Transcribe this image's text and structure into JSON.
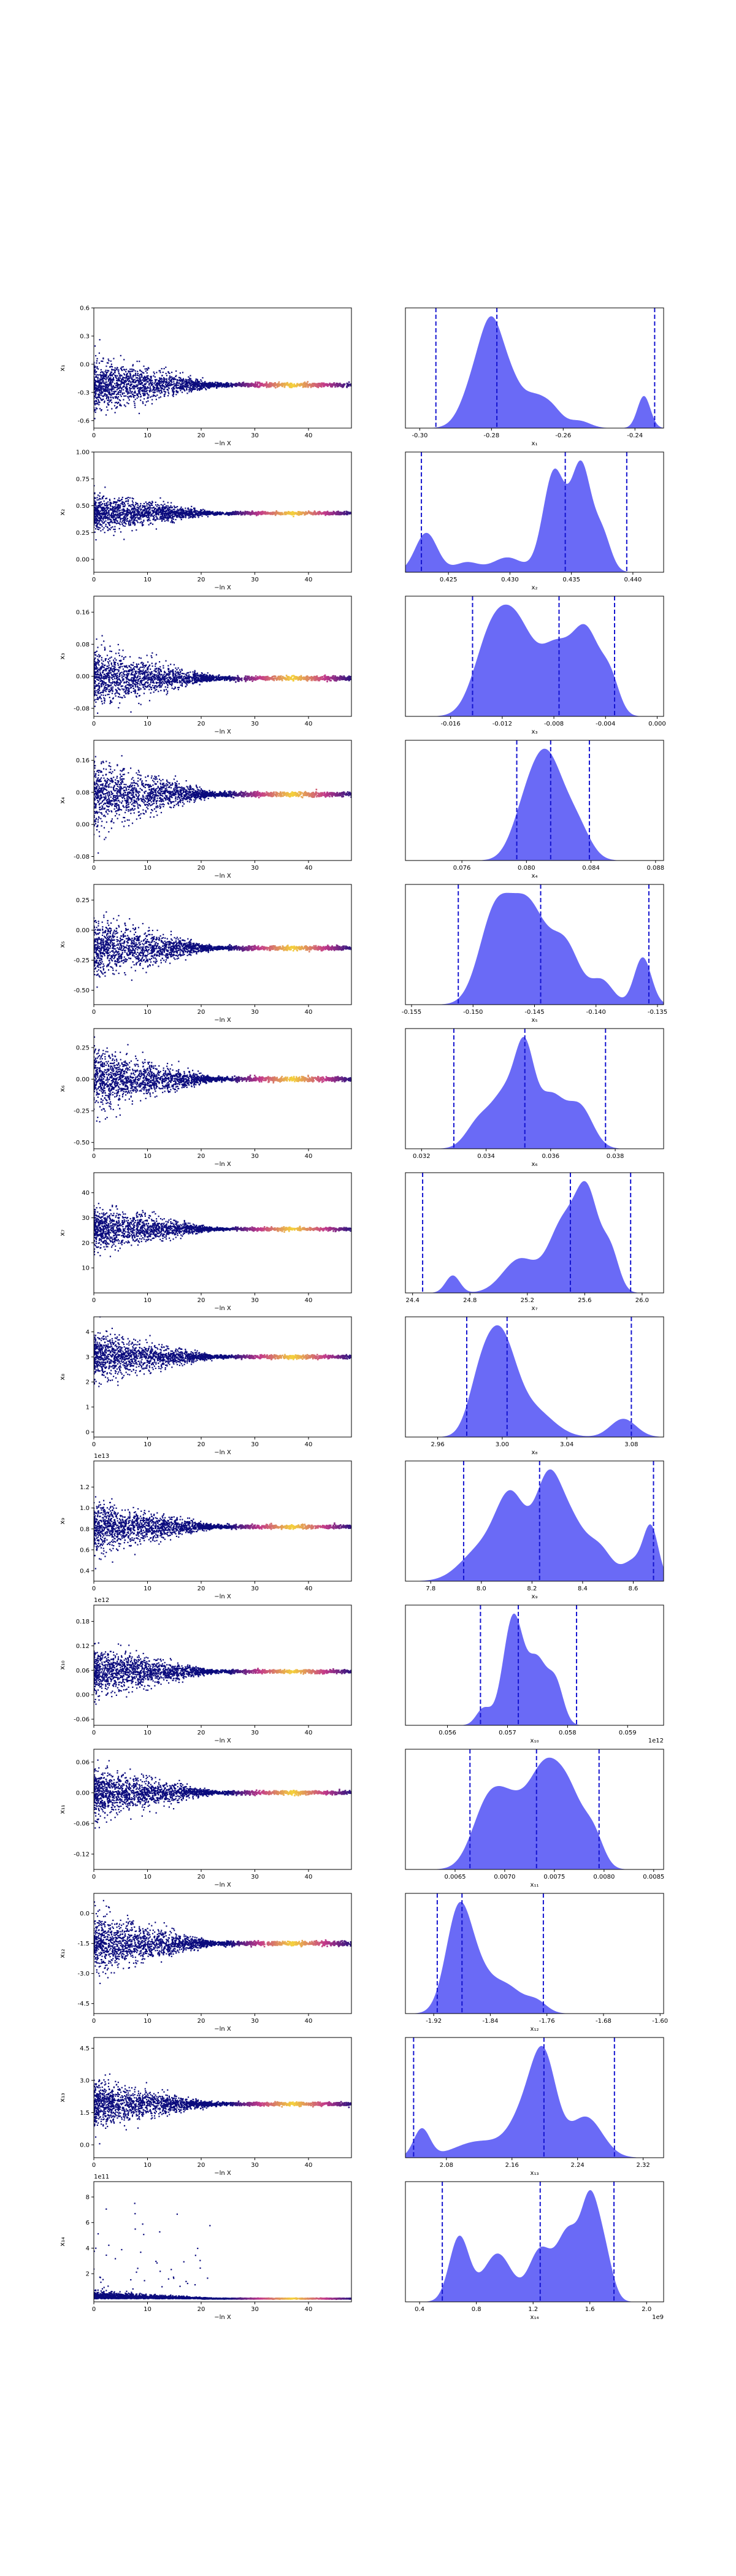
{
  "chart_data": {
    "type": "scatter",
    "colors": {
      "scatter_low": "#0b0b7d",
      "scatter_mid": "#c33a8a",
      "scatter_high": "#f5d23a",
      "kde_fill": "#5a5af5",
      "kde_alpha": 0.9,
      "quantile_line": "#1515d0"
    },
    "shared": {
      "scatter_xlabel": "−ln X",
      "scatter_xticks": [
        "0",
        "10",
        "20",
        "30",
        "40"
      ],
      "scatter_xlim": [
        0,
        48
      ]
    },
    "params": [
      {
        "ylabel": "x₁",
        "xlabel": "x₁",
        "offset": "",
        "scatter_ylim": [
          -0.68,
          0.6
        ],
        "scatter_yticks": [
          "-0.6",
          "-0.3",
          "0.0",
          "0.3",
          "0.6"
        ],
        "scatter_converged": -0.22,
        "scatter_spread": 0.25,
        "kde_xlim": [
          -0.304,
          -0.232
        ],
        "kde_xticks": [
          "-0.30",
          "-0.28",
          "-0.26",
          "-0.24"
        ],
        "kde_quantiles": [
          -0.2955,
          -0.2785,
          -0.2345
        ],
        "kde_peaks": [
          [
            -0.2835,
            0.8,
            0.004
          ],
          [
            -0.2795,
            0.93,
            0.003
          ],
          [
            -0.2745,
            0.55,
            0.003
          ],
          [
            -0.2685,
            0.35,
            0.003
          ],
          [
            -0.2635,
            0.28,
            0.003
          ],
          [
            -0.2555,
            0.1,
            0.003
          ],
          [
            -0.2375,
            0.45,
            0.0018
          ]
        ]
      },
      {
        "ylabel": "x₂",
        "xlabel": "x₂",
        "offset": "",
        "scatter_ylim": [
          -0.12,
          1.0
        ],
        "scatter_yticks": [
          "0.00",
          "0.25",
          "0.50",
          "0.75",
          "1.00"
        ],
        "scatter_converged": 0.43,
        "scatter_spread": 0.15,
        "kde_xlim": [
          0.4215,
          0.4425
        ],
        "kde_xticks": [
          "0.425",
          "0.430",
          "0.435",
          "0.440"
        ],
        "kde_quantiles": [
          0.4228,
          0.4345,
          0.4395
        ],
        "kde_peaks": [
          [
            0.4232,
            0.32,
            0.0009
          ],
          [
            0.4265,
            0.08,
            0.001
          ],
          [
            0.4298,
            0.12,
            0.0012
          ],
          [
            0.4336,
            0.82,
            0.0009
          ],
          [
            0.4358,
            0.85,
            0.0008
          ],
          [
            0.4375,
            0.3,
            0.0007
          ]
        ]
      },
      {
        "ylabel": "x₃",
        "xlabel": "x₃",
        "offset": "",
        "scatter_ylim": [
          -0.1,
          0.2
        ],
        "scatter_yticks": [
          "-0.08",
          "0.00",
          "0.08",
          "0.16"
        ],
        "scatter_converged": -0.005,
        "scatter_spread": 0.06,
        "kde_xlim": [
          -0.0195,
          0.0005
        ],
        "kde_xticks": [
          "-0.016",
          "-0.012",
          "-0.008",
          "-0.004",
          "0.000"
        ],
        "kde_quantiles": [
          -0.0143,
          -0.0076,
          -0.0033
        ],
        "kde_peaks": [
          [
            -0.0132,
            0.45,
            0.0012
          ],
          [
            -0.0111,
            0.95,
            0.0016
          ],
          [
            -0.0078,
            0.55,
            0.0011
          ],
          [
            -0.0055,
            0.82,
            0.0011
          ],
          [
            -0.0036,
            0.3,
            0.0007
          ]
        ]
      },
      {
        "ylabel": "x₄",
        "xlabel": "x₄",
        "offset": "",
        "scatter_ylim": [
          -0.09,
          0.21
        ],
        "scatter_yticks": [
          "-0.08",
          "0.00",
          "0.08",
          "0.16"
        ],
        "scatter_converged": 0.075,
        "scatter_spread": 0.07,
        "kde_xlim": [
          0.0725,
          0.0885
        ],
        "kde_xticks": [
          "0.076",
          "0.080",
          "0.084",
          "0.088"
        ],
        "kde_quantiles": [
          0.0794,
          0.0815,
          0.0839
        ],
        "kde_peaks": [
          [
            0.0812,
            1.0,
            0.0011
          ],
          [
            0.0797,
            0.2,
            0.0008
          ],
          [
            0.0832,
            0.25,
            0.0008
          ]
        ]
      },
      {
        "ylabel": "x₅",
        "xlabel": "x₅",
        "offset": "",
        "scatter_ylim": [
          -0.62,
          0.38
        ],
        "scatter_yticks": [
          "-0.50",
          "-0.25",
          "0.00",
          "0.25"
        ],
        "scatter_converged": -0.15,
        "scatter_spread": 0.2,
        "kde_xlim": [
          -0.1555,
          -0.1345
        ],
        "kde_xticks": [
          "-0.155",
          "-0.150",
          "-0.145",
          "-0.140",
          "-0.135"
        ],
        "kde_quantiles": [
          -0.1512,
          -0.1445,
          -0.1357
        ],
        "kde_peaks": [
          [
            -0.1482,
            0.85,
            0.0013
          ],
          [
            -0.1455,
            0.9,
            0.0014
          ],
          [
            -0.1425,
            0.55,
            0.0012
          ],
          [
            -0.1395,
            0.22,
            0.0009
          ],
          [
            -0.1362,
            0.45,
            0.0007
          ]
        ]
      },
      {
        "ylabel": "x₆",
        "xlabel": "x₆",
        "offset": "",
        "scatter_ylim": [
          -0.55,
          0.4
        ],
        "scatter_yticks": [
          "-0.50",
          "-0.25",
          "0.00",
          "0.25"
        ],
        "scatter_converged": 0.0,
        "scatter_spread": 0.2,
        "kde_xlim": [
          0.0315,
          0.0395
        ],
        "kde_xticks": [
          "0.032",
          "0.034",
          "0.036",
          "0.038"
        ],
        "kde_quantiles": [
          0.033,
          0.0352,
          0.0377
        ],
        "kde_peaks": [
          [
            0.0338,
            0.3,
            0.0004
          ],
          [
            0.0346,
            0.55,
            0.0004
          ],
          [
            0.0352,
            0.95,
            0.0003
          ],
          [
            0.036,
            0.55,
            0.0004
          ],
          [
            0.0369,
            0.45,
            0.0004
          ]
        ]
      },
      {
        "ylabel": "x₇",
        "xlabel": "x₇",
        "offset": "",
        "scatter_ylim": [
          0,
          48
        ],
        "scatter_yticks": [
          "10",
          "20",
          "30",
          "40"
        ],
        "scatter_converged": 25.5,
        "scatter_spread": 7,
        "kde_xlim": [
          24.35,
          26.15
        ],
        "kde_xticks": [
          "24.4",
          "24.8",
          "25.2",
          "25.6",
          "26.0"
        ],
        "kde_quantiles": [
          24.47,
          25.5,
          25.92
        ],
        "kde_peaks": [
          [
            24.68,
            0.18,
            0.05
          ],
          [
            25.15,
            0.35,
            0.12
          ],
          [
            25.45,
            0.7,
            0.1
          ],
          [
            25.62,
            0.95,
            0.08
          ],
          [
            25.78,
            0.4,
            0.06
          ]
        ]
      },
      {
        "ylabel": "x₈",
        "xlabel": "x₈",
        "offset": "",
        "scatter_ylim": [
          -0.2,
          4.6
        ],
        "scatter_yticks": [
          "0",
          "1",
          "2",
          "3",
          "4"
        ],
        "scatter_converged": 3.0,
        "scatter_spread": 0.8,
        "kde_xlim": [
          2.94,
          3.1
        ],
        "kde_xticks": [
          "2.96",
          "3.00",
          "3.04",
          "3.08"
        ],
        "kde_quantiles": [
          2.978,
          3.003,
          3.08
        ],
        "kde_peaks": [
          [
            2.998,
            1.0,
            0.01
          ],
          [
            2.985,
            0.3,
            0.007
          ],
          [
            3.02,
            0.25,
            0.012
          ],
          [
            3.075,
            0.18,
            0.008
          ]
        ]
      },
      {
        "ylabel": "x₉",
        "xlabel": "x₉",
        "offset": "1e13",
        "scatter_ylim": [
          0.3,
          1.45
        ],
        "scatter_yticks": [
          "0.4",
          "0.6",
          "0.8",
          "1.0",
          "1.2"
        ],
        "scatter_converged": 0.82,
        "scatter_spread": 0.2,
        "kde_xlim": [
          7.7,
          8.72
        ],
        "kde_xticks": [
          "7.8",
          "8.0",
          "8.2",
          "8.4",
          "8.6"
        ],
        "kde_quantiles": [
          7.93,
          8.23,
          8.68
        ],
        "kde_peaks": [
          [
            8.0,
            0.3,
            0.08
          ],
          [
            8.12,
            0.75,
            0.06
          ],
          [
            8.26,
            0.82,
            0.05
          ],
          [
            8.35,
            0.55,
            0.06
          ],
          [
            8.47,
            0.28,
            0.05
          ],
          [
            8.6,
            0.18,
            0.04
          ],
          [
            8.67,
            0.5,
            0.03
          ]
        ]
      },
      {
        "ylabel": "x₁₀",
        "xlabel": "x₁₀",
        "offset": "1e12",
        "scatter_ylim": [
          -0.075,
          0.22
        ],
        "scatter_yticks": [
          "-0.06",
          "0.00",
          "0.06",
          "0.12",
          "0.18"
        ],
        "scatter_converged": 0.057,
        "scatter_spread": 0.05,
        "kde_xlim": [
          0.0553,
          0.0596
        ],
        "kde_xticks": [
          "0.056",
          "0.057",
          "0.058",
          "0.059"
        ],
        "kde_quantiles": [
          0.05655,
          0.05718,
          0.05815
        ],
        "kde_peaks": [
          [
            0.0571,
            1.0,
            0.00017
          ],
          [
            0.0575,
            0.55,
            0.00015
          ],
          [
            0.0578,
            0.38,
            0.00013
          ],
          [
            0.0566,
            0.15,
            0.00012
          ]
        ]
      },
      {
        "ylabel": "x₁₁",
        "xlabel": "x₁₁",
        "offset": "",
        "scatter_ylim": [
          -0.15,
          0.085
        ],
        "scatter_yticks": [
          "-0.12",
          "-0.06",
          "0.00",
          "0.06"
        ],
        "scatter_converged": 0.0,
        "scatter_spread": 0.04,
        "kde_xlim": [
          0.006,
          0.0086
        ],
        "kde_xticks": [
          "0.0065",
          "0.0070",
          "0.0075",
          "0.0080",
          "0.0085"
        ],
        "kde_quantiles": [
          0.00665,
          0.00732,
          0.00795
        ],
        "kde_peaks": [
          [
            0.0068,
            0.45,
            0.00015
          ],
          [
            0.00705,
            0.7,
            0.0002
          ],
          [
            0.0074,
            0.85,
            0.00015
          ],
          [
            0.00765,
            0.75,
            0.00015
          ],
          [
            0.0079,
            0.3,
            0.0001
          ]
        ]
      },
      {
        "ylabel": "x₁₂",
        "xlabel": "x₁₂",
        "offset": "",
        "scatter_ylim": [
          -5.0,
          1.0
        ],
        "scatter_yticks": [
          "-4.5",
          "-3.0",
          "-1.5",
          "0.0"
        ],
        "scatter_converged": -1.5,
        "scatter_spread": 1.2,
        "kde_xlim": [
          -1.96,
          -1.595
        ],
        "kde_xticks": [
          "-1.92",
          "-1.84",
          "-1.76",
          "-1.68",
          "-1.60"
        ],
        "kde_quantiles": [
          -1.915,
          -1.88,
          -1.765
        ],
        "kde_peaks": [
          [
            -1.885,
            1.0,
            0.018
          ],
          [
            -1.855,
            0.35,
            0.02
          ],
          [
            -1.815,
            0.25,
            0.02
          ],
          [
            -1.775,
            0.12,
            0.015
          ]
        ]
      },
      {
        "ylabel": "x₁₃",
        "xlabel": "x₁₃",
        "offset": "",
        "scatter_ylim": [
          -0.6,
          5.0
        ],
        "scatter_yticks": [
          "0.0",
          "1.5",
          "3.0",
          "4.5"
        ],
        "scatter_converged": 1.9,
        "scatter_spread": 0.9,
        "kde_xlim": [
          2.03,
          2.345
        ],
        "kde_xticks": [
          "2.08",
          "2.16",
          "2.24",
          "2.32"
        ],
        "kde_quantiles": [
          2.04,
          2.199,
          2.285
        ],
        "kde_peaks": [
          [
            2.05,
            0.35,
            0.01
          ],
          [
            2.12,
            0.2,
            0.03
          ],
          [
            2.18,
            0.6,
            0.02
          ],
          [
            2.2,
            0.95,
            0.015
          ],
          [
            2.25,
            0.5,
            0.02
          ]
        ]
      },
      {
        "ylabel": "x₁₄",
        "xlabel": "x₁₄",
        "offset": "1e11",
        "scatter_ylim": [
          -0.2,
          9.2
        ],
        "scatter_yticks": [
          "2",
          "4",
          "6",
          "8"
        ],
        "scatter_converged": 0.05,
        "scatter_spread": 0.3,
        "kde_xlim": [
          0.3,
          2.12
        ],
        "kde_xticks": [
          "0.4",
          "0.8",
          "1.2",
          "1.6",
          "2.0"
        ],
        "kde_quantiles": [
          0.56,
          1.25,
          1.77
        ],
        "kde_peaks": [
          [
            0.68,
            0.7,
            0.07
          ],
          [
            0.95,
            0.52,
            0.1
          ],
          [
            1.25,
            0.55,
            0.08
          ],
          [
            1.45,
            0.75,
            0.08
          ],
          [
            1.6,
            0.95,
            0.06
          ],
          [
            1.7,
            0.5,
            0.06
          ]
        ],
        "kde_offset": "1e9"
      }
    ]
  }
}
